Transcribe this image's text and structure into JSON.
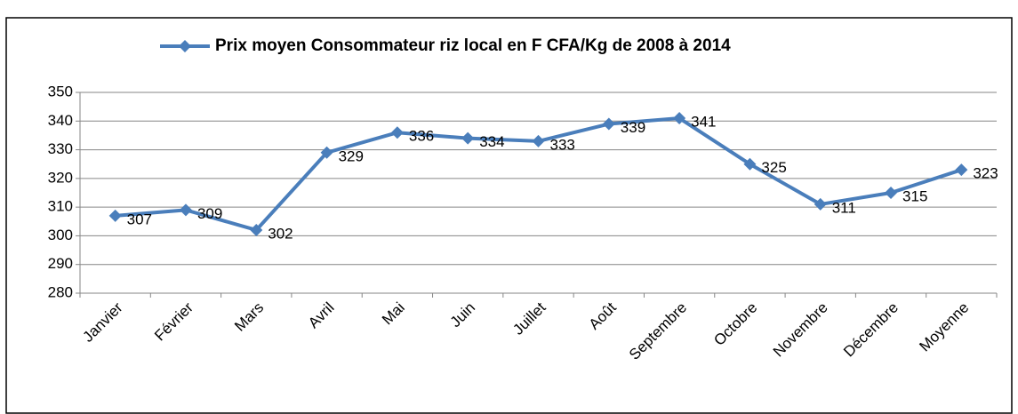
{
  "chart_data": {
    "type": "line",
    "series": [
      {
        "name": "Prix moyen Consommateur riz local en F CFA/Kg de 2008 à 2014",
        "color": "#4a7ebb",
        "values": [
          307,
          309,
          302,
          329,
          336,
          334,
          333,
          339,
          341,
          325,
          311,
          315,
          323
        ]
      }
    ],
    "categories": [
      "Janvier",
      "Février",
      "Mars",
      "Avril",
      "Mai",
      "Juin",
      "Juillet",
      "Août",
      "Septembre",
      "Octobre",
      "Novembre",
      "Décembre",
      "Moyenne"
    ],
    "ylim": [
      280,
      350
    ],
    "yticks": [
      280,
      290,
      300,
      310,
      320,
      330,
      340,
      350
    ],
    "grid": true,
    "legend": "top"
  }
}
